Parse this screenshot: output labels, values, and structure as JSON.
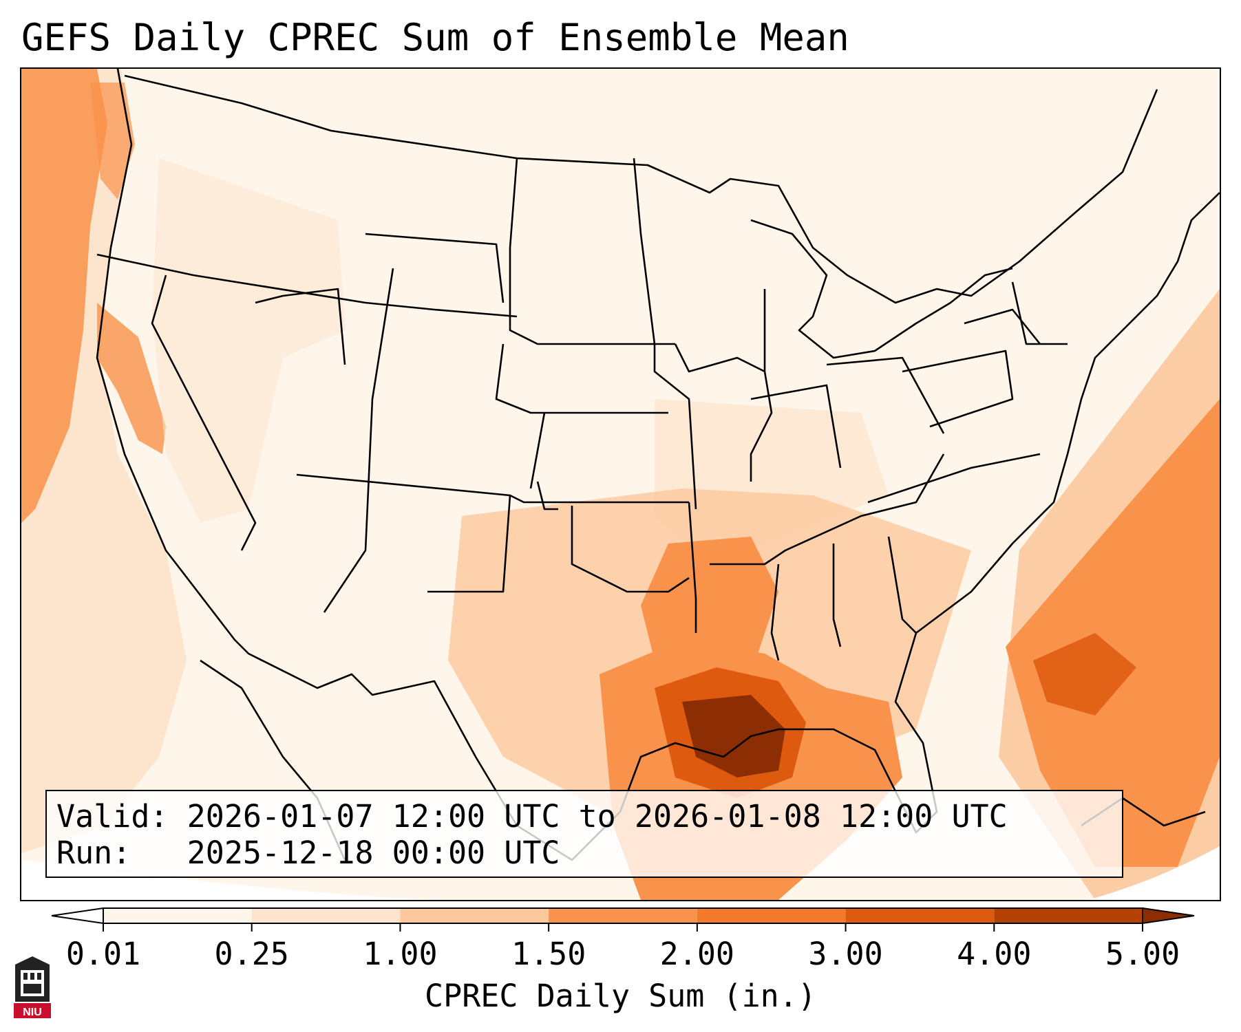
{
  "title": "GEFS Daily CPREC Sum of Ensemble Mean",
  "info": {
    "valid_label": "Valid:",
    "valid_value": "2026-01-07 12:00 UTC to 2026-01-08 12:00 UTC",
    "run_label": "Run:",
    "run_value": "2025-12-18 00:00 UTC"
  },
  "colorbar": {
    "label": "CPREC Daily Sum (in.)",
    "ticks": [
      "0.01",
      "0.25",
      "1.00",
      "1.50",
      "2.00",
      "3.00",
      "4.00",
      "5.00"
    ],
    "colors": [
      "#fef5eb",
      "#fde4cc",
      "#fcc89c",
      "#f9924a",
      "#f27a2a",
      "#de5a0e",
      "#b54104"
    ],
    "extend": "both",
    "under_color": "#ffffff",
    "over_color": "#8c2d04"
  },
  "map": {
    "region": "Continental United States",
    "field": "CPREC daily sum",
    "max_region": "Louisiana Gulf coast",
    "secondary_maxima": [
      "Atlantic off the Southeast coast",
      "Pacific coast of northern California and Oregon"
    ]
  },
  "logo": {
    "text": "NIU",
    "icon": "niu-logo-icon",
    "accent": "#c8102e"
  }
}
